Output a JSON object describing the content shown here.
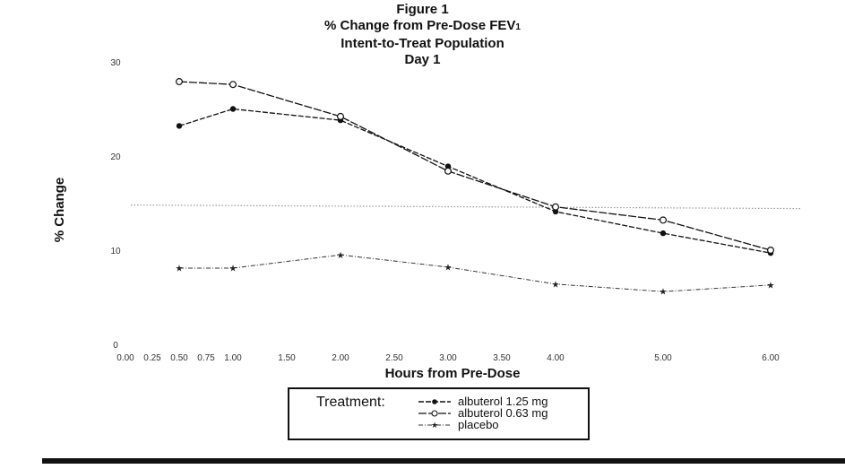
{
  "figure": {
    "label": "Figure 1",
    "title": "% Change from Pre-Dose FEV",
    "title_subscript": "1",
    "subtitle": "Intent-to-Treat Population",
    "day": "Day 1"
  },
  "legend": {
    "title": "Treatment:",
    "placement": "bottom-center"
  },
  "chart_data": {
    "type": "line",
    "xlabel": "Hours from Pre-Dose",
    "ylabel": "% Change",
    "xlim": [
      0,
      6
    ],
    "ylim": [
      0,
      30
    ],
    "x_ticks": [
      "0.00",
      "0.25",
      "0.50",
      "0.75",
      "1.00",
      "1.50",
      "2.00",
      "2.50",
      "3.00",
      "3.50",
      "4.00",
      "5.00",
      "6.00"
    ],
    "y_ticks": [
      "0",
      "10",
      "20",
      "30"
    ],
    "grid": false,
    "reference_line": {
      "y": 14.8,
      "style": "dotted"
    },
    "series": [
      {
        "name": "albuterol 1.25 mg",
        "marker": "filled-circle",
        "line": "dash",
        "color": "#111111",
        "x": [
          0.5,
          1.0,
          2.0,
          3.0,
          4.0,
          5.0,
          6.0
        ],
        "values": [
          23.2,
          25.0,
          23.8,
          18.9,
          14.1,
          11.8,
          9.7
        ]
      },
      {
        "name": "albuterol 0.63 mg",
        "marker": "open-circle",
        "line": "long-dash",
        "color": "#111111",
        "x": [
          0.5,
          1.0,
          2.0,
          3.0,
          4.0,
          5.0,
          6.0
        ],
        "values": [
          27.9,
          27.6,
          24.2,
          18.4,
          14.6,
          13.2,
          10.0
        ]
      },
      {
        "name": "placebo",
        "marker": "star",
        "line": "dash-dot",
        "color": "#333333",
        "x": [
          0.5,
          1.0,
          2.0,
          3.0,
          4.0,
          5.0,
          6.0
        ],
        "values": [
          8.1,
          8.1,
          9.5,
          8.2,
          6.4,
          5.6,
          6.3
        ]
      }
    ]
  }
}
